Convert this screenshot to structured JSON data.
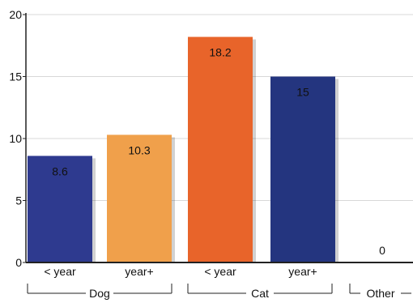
{
  "chart_data": {
    "type": "bar",
    "ylim": [
      0,
      20
    ],
    "yticks": [
      0,
      5,
      10,
      15,
      20
    ],
    "grid": true,
    "groups": [
      {
        "name": "Dog",
        "bars": [
          {
            "label": "< year",
            "value": 8.6,
            "data_label": "8.6",
            "color": "#2e3a8f"
          },
          {
            "label": "year+",
            "value": 10.3,
            "data_label": "10.3",
            "color": "#f0a04b"
          }
        ]
      },
      {
        "name": "Cat",
        "bars": [
          {
            "label": "< year",
            "value": 18.2,
            "data_label": "18.2",
            "color": "#e8642a"
          },
          {
            "label": "year+",
            "value": 15,
            "data_label": "15",
            "color": "#24357f"
          }
        ]
      },
      {
        "name": "Other",
        "bars": [
          {
            "label": "",
            "value": 0,
            "data_label": "0",
            "color": "#333333"
          }
        ]
      }
    ]
  }
}
